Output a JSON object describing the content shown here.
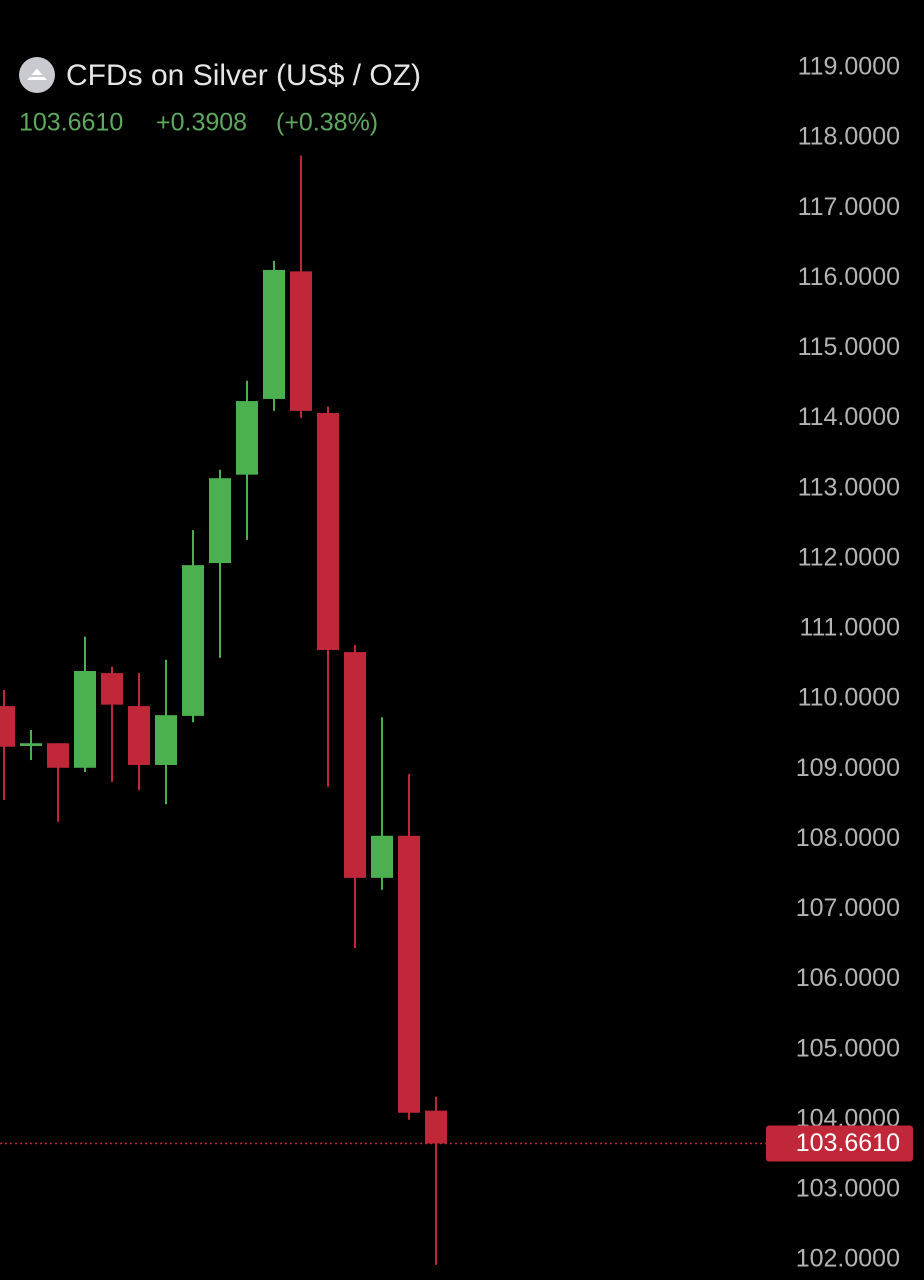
{
  "chart_data": {
    "type": "candlestick",
    "title": "CFDs on Silver (US$ / OZ)",
    "last_price": {
      "value": 103.661,
      "label": "103.6610"
    },
    "change": "+0.3908",
    "change_percent": "(+0.38%)",
    "up_color": "#4caf50",
    "down_color": "#c0283a",
    "header_color": "#5fa860",
    "series": {
      "open": [
        109.9,
        109.33,
        109.37,
        109.02,
        110.37,
        109.9,
        109.06,
        109.76,
        111.94,
        113.2,
        114.28,
        116.1,
        114.08,
        110.67,
        107.45,
        108.05,
        104.13
      ],
      "high": [
        110.13,
        109.56,
        109.37,
        110.89,
        110.46,
        110.37,
        110.56,
        112.41,
        113.27,
        114.54,
        116.25,
        117.75,
        114.17,
        110.77,
        109.74,
        108.93,
        104.33
      ],
      "low": [
        108.56,
        109.13,
        108.25,
        108.96,
        108.82,
        108.7,
        108.5,
        109.67,
        110.59,
        112.27,
        114.11,
        114.01,
        108.75,
        106.45,
        107.28,
        104.0,
        101.93
      ],
      "close": [
        109.32,
        109.37,
        109.02,
        110.4,
        109.92,
        109.06,
        109.77,
        111.91,
        113.15,
        114.25,
        116.12,
        114.11,
        110.7,
        107.45,
        108.05,
        104.1,
        103.661
      ]
    },
    "ylim": [
      119,
      102
    ],
    "yticks": [
      {
        "value": 119,
        "label": "119.0000"
      },
      {
        "value": 118,
        "label": "118.0000"
      },
      {
        "value": 117,
        "label": "117.0000"
      },
      {
        "value": 116,
        "label": "116.0000"
      },
      {
        "value": 115,
        "label": "115.0000"
      },
      {
        "value": 114,
        "label": "114.0000"
      },
      {
        "value": 113,
        "label": "113.0000"
      },
      {
        "value": 112,
        "label": "112.0000"
      },
      {
        "value": 111,
        "label": "111.0000"
      },
      {
        "value": 110,
        "label": "110.0000"
      },
      {
        "value": 109,
        "label": "109.0000"
      },
      {
        "value": 108,
        "label": "108.0000"
      },
      {
        "value": 107,
        "label": "107.0000"
      },
      {
        "value": 106,
        "label": "106.0000"
      },
      {
        "value": 105,
        "label": "105.0000"
      },
      {
        "value": 104,
        "label": "104.0000"
      },
      {
        "value": 103,
        "label": "103.0000"
      },
      {
        "value": 102,
        "label": "102.0000"
      }
    ]
  }
}
